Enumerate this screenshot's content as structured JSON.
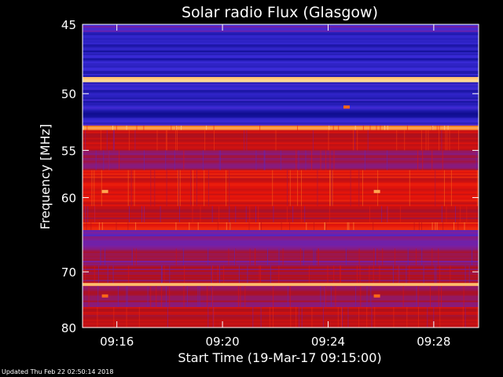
{
  "chart_data": {
    "type": "heatmap",
    "title": "Solar radio Flux (Glasgow)",
    "xlabel": "Start Time (19-Mar-17 09:15:00)",
    "ylabel": "Frequency [MHz]",
    "x_ticks": [
      "09:16",
      "09:20",
      "09:24",
      "09:28"
    ],
    "x_tick_minutes": [
      1,
      5,
      9,
      13
    ],
    "xlim_minutes": [
      -0.3,
      14.7
    ],
    "y_ticks": [
      45,
      50,
      55,
      60,
      70,
      80
    ],
    "ylim": [
      45,
      80
    ],
    "y_scale": "reciprocal",
    "grid": false,
    "colormap": [
      "#0b0b8a",
      "#3a2bd8",
      "#7a1fa0",
      "#b0101a",
      "#e8140a",
      "#ff7a1a",
      "#ffe6a0"
    ],
    "bands": [
      {
        "from": 45.0,
        "to": 45.5,
        "level": 0.25
      },
      {
        "from": 45.5,
        "to": 48.7,
        "level": 0.1
      },
      {
        "from": 48.7,
        "to": 49.1,
        "level": 1.0
      },
      {
        "from": 49.1,
        "to": 51.5,
        "level": 0.12
      },
      {
        "from": 51.5,
        "to": 52.0,
        "level": 0.05
      },
      {
        "from": 52.0,
        "to": 52.7,
        "level": 0.15
      },
      {
        "from": 52.7,
        "to": 53.1,
        "level": 0.85
      },
      {
        "from": 53.1,
        "to": 55.0,
        "level": 0.55
      },
      {
        "from": 55.0,
        "to": 57.0,
        "level": 0.45
      },
      {
        "from": 57.0,
        "to": 61.0,
        "level": 0.62
      },
      {
        "from": 61.0,
        "to": 63.0,
        "level": 0.5
      },
      {
        "from": 63.0,
        "to": 64.0,
        "level": 0.7
      },
      {
        "from": 64.0,
        "to": 66.5,
        "level": 0.3
      },
      {
        "from": 66.5,
        "to": 69.0,
        "level": 0.4
      },
      {
        "from": 69.0,
        "to": 71.8,
        "level": 0.45
      },
      {
        "from": 71.8,
        "to": 72.3,
        "level": 1.0
      },
      {
        "from": 72.3,
        "to": 76.0,
        "level": 0.45
      },
      {
        "from": 76.0,
        "to": 80.0,
        "level": 0.52
      }
    ],
    "bursts": [
      {
        "minute": 0.55,
        "freq": 59.3,
        "level": 0.9
      },
      {
        "minute": 10.85,
        "freq": 59.3,
        "level": 0.9
      },
      {
        "minute": 0.55,
        "freq": 74.0,
        "level": 0.8
      },
      {
        "minute": 10.85,
        "freq": 74.0,
        "level": 0.8
      },
      {
        "minute": 9.7,
        "freq": 51.1,
        "level": 0.8
      }
    ]
  },
  "footer": "Updated Thu Feb 22 02:50:14 2018"
}
